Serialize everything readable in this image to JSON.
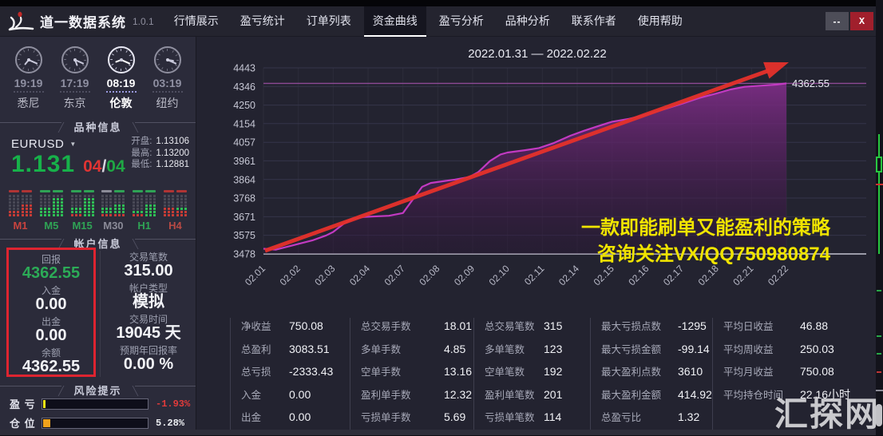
{
  "window": {
    "title": "道一数据系统",
    "version": "1.0.1",
    "minimize": "--",
    "close": "X"
  },
  "nav_tabs": [
    {
      "label": "行情展示",
      "active": false
    },
    {
      "label": "盈亏统计",
      "active": false
    },
    {
      "label": "订单列表",
      "active": false
    },
    {
      "label": "资金曲线",
      "active": true
    },
    {
      "label": "盈亏分析",
      "active": false
    },
    {
      "label": "品种分析",
      "active": false
    },
    {
      "label": "联系作者",
      "active": false
    },
    {
      "label": "使用帮助",
      "active": false
    }
  ],
  "clocks": [
    {
      "city": "悉尼",
      "time": "19:19",
      "active": false
    },
    {
      "city": "东京",
      "time": "17:19",
      "active": false
    },
    {
      "city": "伦敦",
      "time": "08:19",
      "active": true
    },
    {
      "city": "纽约",
      "time": "03:19",
      "active": false
    }
  ],
  "symbol_panel": {
    "header": "品种信息",
    "symbol": "EURUSD",
    "price": "1.131",
    "count_left": "04",
    "count_divider": "/",
    "count_right": "04",
    "quotes": [
      {
        "label": "开盘:",
        "value": "1.13106"
      },
      {
        "label": "最高:",
        "value": "1.13200"
      },
      {
        "label": "最低:",
        "value": "1.12881"
      }
    ],
    "timeframes": [
      {
        "label": "M1",
        "label_color": "#c8433e",
        "dashes": [
          "#b03434",
          "#b03434"
        ],
        "col1": [
          "red",
          "red"
        ],
        "col2": [
          "red",
          "red",
          "red",
          "red"
        ]
      },
      {
        "label": "M5",
        "label_color": "#2fa355",
        "dashes": [
          "#2fa355",
          "#2fa355"
        ],
        "col1": [
          "green",
          "green",
          "green"
        ],
        "col2": [
          "green",
          "green",
          "green",
          "green",
          "green",
          "green"
        ]
      },
      {
        "label": "M15",
        "label_color": "#2fa355",
        "dashes": [
          "#2fa355",
          "#2fa355"
        ],
        "col1": [
          "red",
          "green",
          "green"
        ],
        "col2": [
          "green",
          "green",
          "green",
          "green",
          "green",
          "green"
        ]
      },
      {
        "label": "M30",
        "label_color": "#8b8b98",
        "dashes": [
          "#8b8b98",
          "#2fa355"
        ],
        "col1": [
          "red",
          "green",
          "green"
        ],
        "col2": [
          "red",
          "green",
          "green",
          "green"
        ]
      },
      {
        "label": "H1",
        "label_color": "#2fa355",
        "dashes": [
          "#2fa355",
          "#2fa355"
        ],
        "col1": [
          "red",
          "green"
        ],
        "col2": [
          "green",
          "green",
          "green",
          "green"
        ]
      },
      {
        "label": "H4",
        "label_color": "#b84a44",
        "dashes": [
          "#b03434",
          "#b03434"
        ],
        "col1": [
          "red",
          "red",
          "red"
        ],
        "col2": [
          "red",
          "red",
          "green"
        ]
      }
    ]
  },
  "account_panel": {
    "header": "帐户信息",
    "highlight_rows": [
      {
        "label": "回报",
        "value": "4362.55",
        "green": true
      },
      {
        "label": "入金",
        "value": "0.00",
        "green": false
      },
      {
        "label": "出金",
        "value": "0.00",
        "green": false
      },
      {
        "label": "余额",
        "value": "4362.55",
        "green": false
      }
    ],
    "info_rows": [
      {
        "label": "交易笔数",
        "value": "315.00"
      },
      {
        "label": "帐户类型",
        "value": "模拟"
      },
      {
        "label": "交易时间",
        "value": "19045 天"
      },
      {
        "label": "预期年回报率",
        "value": "0.00 %"
      }
    ]
  },
  "risk_panel": {
    "header": "风险提示",
    "rows": [
      {
        "label": "盈 亏",
        "value": "-1.93%",
        "value_color": "#e23b3b",
        "fill_pct": 2.5,
        "fill_color": "#f5e616"
      },
      {
        "label": "仓 位",
        "value": "5.28%",
        "value_color": "#eceef2",
        "fill_pct": 6.5,
        "fill_color": "#f0a21c"
      }
    ]
  },
  "chart_data": {
    "type": "area",
    "title": "2022.01.31 — 2022.02.22",
    "x_labels": [
      "02.01",
      "02.02",
      "02.03",
      "02.04",
      "02.07",
      "02.08",
      "02.09",
      "02.10",
      "02.11",
      "02.14",
      "02.15",
      "02.16",
      "02.17",
      "02.18",
      "02.21",
      "02.22"
    ],
    "y_ticks": [
      4443,
      4346,
      4250,
      4154,
      4057,
      3961,
      3864,
      3768,
      3671,
      3575,
      3478
    ],
    "ylim": [
      3478,
      4443
    ],
    "grid": true,
    "legend_position": "none",
    "final_value": 4362.55,
    "final_label": "4362.55",
    "series": [
      {
        "name": "资金曲线",
        "points": [
          [
            0,
            3505
          ],
          [
            0.35,
            3500
          ],
          [
            0.7,
            3516
          ],
          [
            1,
            3530
          ],
          [
            1.4,
            3548
          ],
          [
            1.8,
            3574
          ],
          [
            2,
            3592
          ],
          [
            2.3,
            3634
          ],
          [
            2.55,
            3660
          ],
          [
            2.9,
            3670
          ],
          [
            3.6,
            3676
          ],
          [
            4,
            3690
          ],
          [
            4.25,
            3752
          ],
          [
            4.55,
            3826
          ],
          [
            4.8,
            3846
          ],
          [
            5,
            3851
          ],
          [
            5.5,
            3864
          ],
          [
            5.9,
            3877
          ],
          [
            6.15,
            3901
          ],
          [
            6.5,
            3960
          ],
          [
            6.8,
            3994
          ],
          [
            7,
            4004
          ],
          [
            7.5,
            4016
          ],
          [
            7.9,
            4027
          ],
          [
            8.3,
            4051
          ],
          [
            8.8,
            4091
          ],
          [
            9.2,
            4117
          ],
          [
            9.6,
            4141
          ],
          [
            10,
            4164
          ],
          [
            10.5,
            4179
          ],
          [
            11,
            4201
          ],
          [
            11.5,
            4229
          ],
          [
            12,
            4257
          ],
          [
            12.5,
            4287
          ],
          [
            13,
            4311
          ],
          [
            13.4,
            4331
          ],
          [
            13.8,
            4345
          ],
          [
            14.3,
            4351
          ],
          [
            14.7,
            4356
          ],
          [
            15,
            4362.55
          ]
        ]
      }
    ],
    "annotation": [
      "一款即能刷单又能盈利的策略",
      "咨询关注VX/QQ750980874"
    ],
    "colors": {
      "curve": "#c23ac2",
      "fill": "#7b2d84",
      "level_line": "#9a4fa0",
      "trend_arrow": "#e5312b",
      "annotation": "#f0e400"
    }
  },
  "stats_groups": [
    {
      "rows": [
        [
          "净收益",
          "750.08"
        ],
        [
          "总盈利",
          "3083.51"
        ],
        [
          "总亏损",
          "-2333.43"
        ],
        [
          "入金",
          "0.00"
        ],
        [
          "出金",
          "0.00"
        ]
      ]
    },
    {
      "rows": [
        [
          "总交易手数",
          "18.01"
        ],
        [
          "多单手数",
          "4.85"
        ],
        [
          "空单手数",
          "13.16"
        ],
        [
          "盈利单手数",
          "12.32"
        ],
        [
          "亏损单手数",
          "5.69"
        ]
      ]
    },
    {
      "rows": [
        [
          "总交易笔数",
          "315"
        ],
        [
          "多单笔数",
          "123"
        ],
        [
          "空单笔数",
          "192"
        ],
        [
          "盈利单笔数",
          "201"
        ],
        [
          "亏损单笔数",
          "114"
        ]
      ]
    },
    {
      "rows": [
        [
          "最大亏损点数",
          "-1295"
        ],
        [
          "最大亏损金额",
          "-99.14"
        ],
        [
          "最大盈利点数",
          "3610"
        ],
        [
          "最大盈利金额",
          "414.92"
        ],
        [
          "总盈亏比",
          "1.32"
        ]
      ]
    },
    {
      "rows": [
        [
          "平均日收益",
          "46.88"
        ],
        [
          "平均周收益",
          "250.03"
        ],
        [
          "平均月收益",
          "750.08"
        ],
        [
          "平均持仓时间",
          "22.16小时"
        ]
      ]
    }
  ],
  "watermark": "汇探网"
}
